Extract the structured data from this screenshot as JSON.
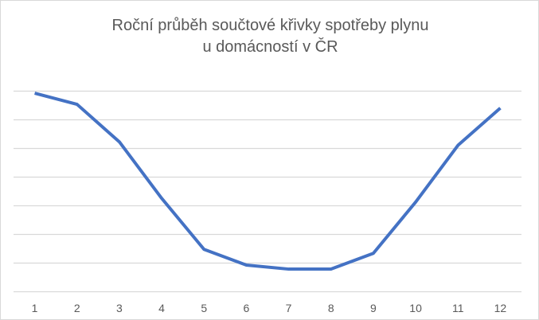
{
  "chart_data": {
    "type": "line",
    "title_line1": "Roční průběh součtové křivky spotřeby plynu",
    "title_line2": "u domácností v ČR",
    "xlabel": "",
    "ylabel": "",
    "categories": [
      "1",
      "2",
      "3",
      "4",
      "5",
      "6",
      "7",
      "8",
      "9",
      "10",
      "11",
      "12"
    ],
    "series": [
      {
        "values": [
          6.93,
          6.54,
          5.23,
          3.26,
          1.48,
          0.93,
          0.79,
          0.79,
          1.34,
          3.13,
          5.11,
          6.41
        ],
        "color": "#4472c4"
      }
    ],
    "ylim": [
      0,
      7
    ],
    "y_axis_labels_shown": false,
    "grid": true,
    "gridline_color": "#d9d9d9",
    "legend": "none"
  }
}
